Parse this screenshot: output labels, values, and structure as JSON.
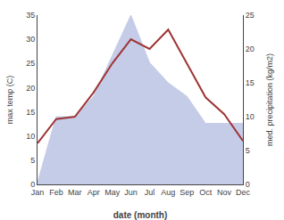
{
  "chart_data": {
    "type": "line",
    "xlabel": "date (month)",
    "ylabel": "max temp (C)",
    "y2label": "med. precipitation (kg/m2)",
    "categories": [
      "Jan",
      "Feb",
      "Mar",
      "Apr",
      "May",
      "Jun",
      "Jul",
      "Aug",
      "Sep",
      "Oct",
      "Nov",
      "Dec"
    ],
    "series": [
      {
        "type": "area",
        "axis": "y2",
        "color": "#c5cce8",
        "values": [
          0.3,
          10.0,
          10.0,
          13.0,
          19.0,
          25.0,
          18.0,
          15.0,
          13.0,
          9.0,
          9.0,
          9.0
        ]
      },
      {
        "type": "line",
        "color": "#9e3535",
        "values": [
          8.5,
          13.5,
          14.0,
          19.0,
          25.0,
          30.0,
          28.0,
          32.0,
          25.0,
          18.0,
          14.5,
          9.0
        ]
      }
    ],
    "ylim": [
      0,
      35
    ],
    "yticks": [
      0,
      5,
      10,
      15,
      20,
      25,
      30,
      35
    ],
    "y2lim": [
      0,
      25
    ],
    "y2ticks": [
      0,
      5,
      10,
      15,
      20,
      25
    ],
    "grid": false
  }
}
